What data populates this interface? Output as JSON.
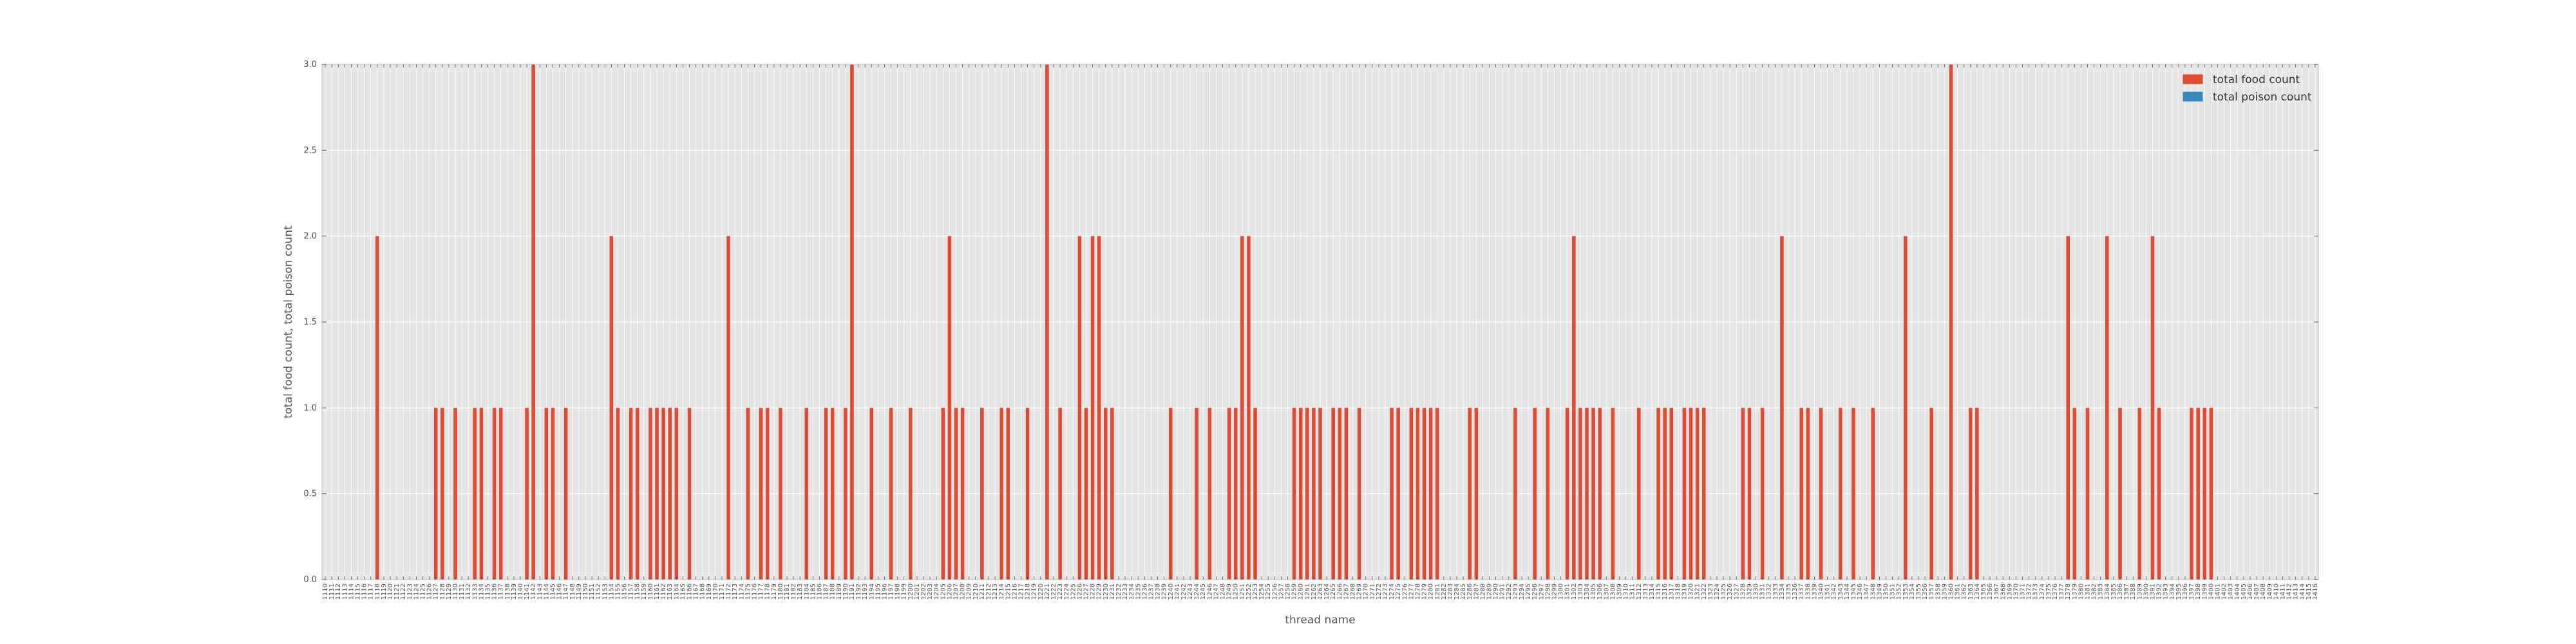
{
  "chart_data": {
    "type": "bar",
    "xlabel": "thread name",
    "ylabel": "total food count, total poison count",
    "ylim": [
      0,
      3.0
    ],
    "yticks": [
      "0.0",
      "0.5",
      "1.0",
      "1.5",
      "2.0",
      "2.5",
      "3.0"
    ],
    "grid": true,
    "legend_position": "top-right",
    "x_start": 1110,
    "x_end": 1416,
    "x_step": 1,
    "series": [
      {
        "name": "total food count",
        "color": "#E24A33",
        "points": [
          [
            1118,
            2
          ],
          [
            1127,
            1
          ],
          [
            1128,
            1
          ],
          [
            1130,
            1
          ],
          [
            1133,
            1
          ],
          [
            1134,
            1
          ],
          [
            1136,
            1
          ],
          [
            1137,
            1
          ],
          [
            1141,
            1
          ],
          [
            1142,
            3
          ],
          [
            1144,
            1
          ],
          [
            1145,
            1
          ],
          [
            1147,
            1
          ],
          [
            1154,
            2
          ],
          [
            1155,
            1
          ],
          [
            1157,
            1
          ],
          [
            1158,
            1
          ],
          [
            1160,
            1
          ],
          [
            1161,
            1
          ],
          [
            1162,
            1
          ],
          [
            1163,
            1
          ],
          [
            1164,
            1
          ],
          [
            1166,
            1
          ],
          [
            1172,
            2
          ],
          [
            1175,
            1
          ],
          [
            1177,
            1
          ],
          [
            1178,
            1
          ],
          [
            1180,
            1
          ],
          [
            1184,
            1
          ],
          [
            1187,
            1
          ],
          [
            1188,
            1
          ],
          [
            1190,
            1
          ],
          [
            1191,
            3
          ],
          [
            1194,
            1
          ],
          [
            1197,
            1
          ],
          [
            1200,
            1
          ],
          [
            1205,
            1
          ],
          [
            1206,
            2
          ],
          [
            1207,
            1
          ],
          [
            1208,
            1
          ],
          [
            1211,
            1
          ],
          [
            1214,
            1
          ],
          [
            1215,
            1
          ],
          [
            1218,
            1
          ],
          [
            1221,
            3
          ],
          [
            1223,
            1
          ],
          [
            1226,
            2
          ],
          [
            1227,
            1
          ],
          [
            1228,
            2
          ],
          [
            1229,
            2
          ],
          [
            1230,
            1
          ],
          [
            1231,
            1
          ],
          [
            1240,
            1
          ],
          [
            1244,
            1
          ],
          [
            1246,
            1
          ],
          [
            1249,
            1
          ],
          [
            1250,
            1
          ],
          [
            1251,
            2
          ],
          [
            1252,
            2
          ],
          [
            1253,
            1
          ],
          [
            1259,
            1
          ],
          [
            1260,
            1
          ],
          [
            1261,
            1
          ],
          [
            1262,
            1
          ],
          [
            1263,
            1
          ],
          [
            1265,
            1
          ],
          [
            1266,
            1
          ],
          [
            1267,
            1
          ],
          [
            1269,
            1
          ],
          [
            1274,
            1
          ],
          [
            1275,
            1
          ],
          [
            1277,
            1
          ],
          [
            1278,
            1
          ],
          [
            1279,
            1
          ],
          [
            1280,
            1
          ],
          [
            1281,
            1
          ],
          [
            1286,
            1
          ],
          [
            1287,
            1
          ],
          [
            1293,
            1
          ],
          [
            1296,
            1
          ],
          [
            1298,
            1
          ],
          [
            1301,
            1
          ],
          [
            1302,
            2
          ],
          [
            1303,
            1
          ],
          [
            1304,
            1
          ],
          [
            1305,
            1
          ],
          [
            1306,
            1
          ],
          [
            1308,
            1
          ],
          [
            1312,
            1
          ],
          [
            1315,
            1
          ],
          [
            1316,
            1
          ],
          [
            1317,
            1
          ],
          [
            1319,
            1
          ],
          [
            1320,
            1
          ],
          [
            1321,
            1
          ],
          [
            1322,
            1
          ],
          [
            1328,
            1
          ],
          [
            1329,
            1
          ],
          [
            1331,
            1
          ],
          [
            1334,
            2
          ],
          [
            1337,
            1
          ],
          [
            1338,
            1
          ],
          [
            1340,
            1
          ],
          [
            1343,
            1
          ],
          [
            1345,
            1
          ],
          [
            1348,
            1
          ],
          [
            1353,
            2
          ],
          [
            1357,
            1
          ],
          [
            1360,
            3
          ],
          [
            1363,
            1
          ],
          [
            1364,
            1
          ],
          [
            1378,
            2
          ],
          [
            1379,
            1
          ],
          [
            1381,
            1
          ],
          [
            1384,
            2
          ],
          [
            1386,
            1
          ],
          [
            1389,
            1
          ],
          [
            1391,
            2
          ],
          [
            1392,
            1
          ],
          [
            1397,
            1
          ],
          [
            1398,
            1
          ],
          [
            1399,
            1
          ],
          [
            1400,
            1
          ]
        ]
      },
      {
        "name": "total poison count",
        "color": "#348ABD",
        "points": []
      }
    ]
  }
}
